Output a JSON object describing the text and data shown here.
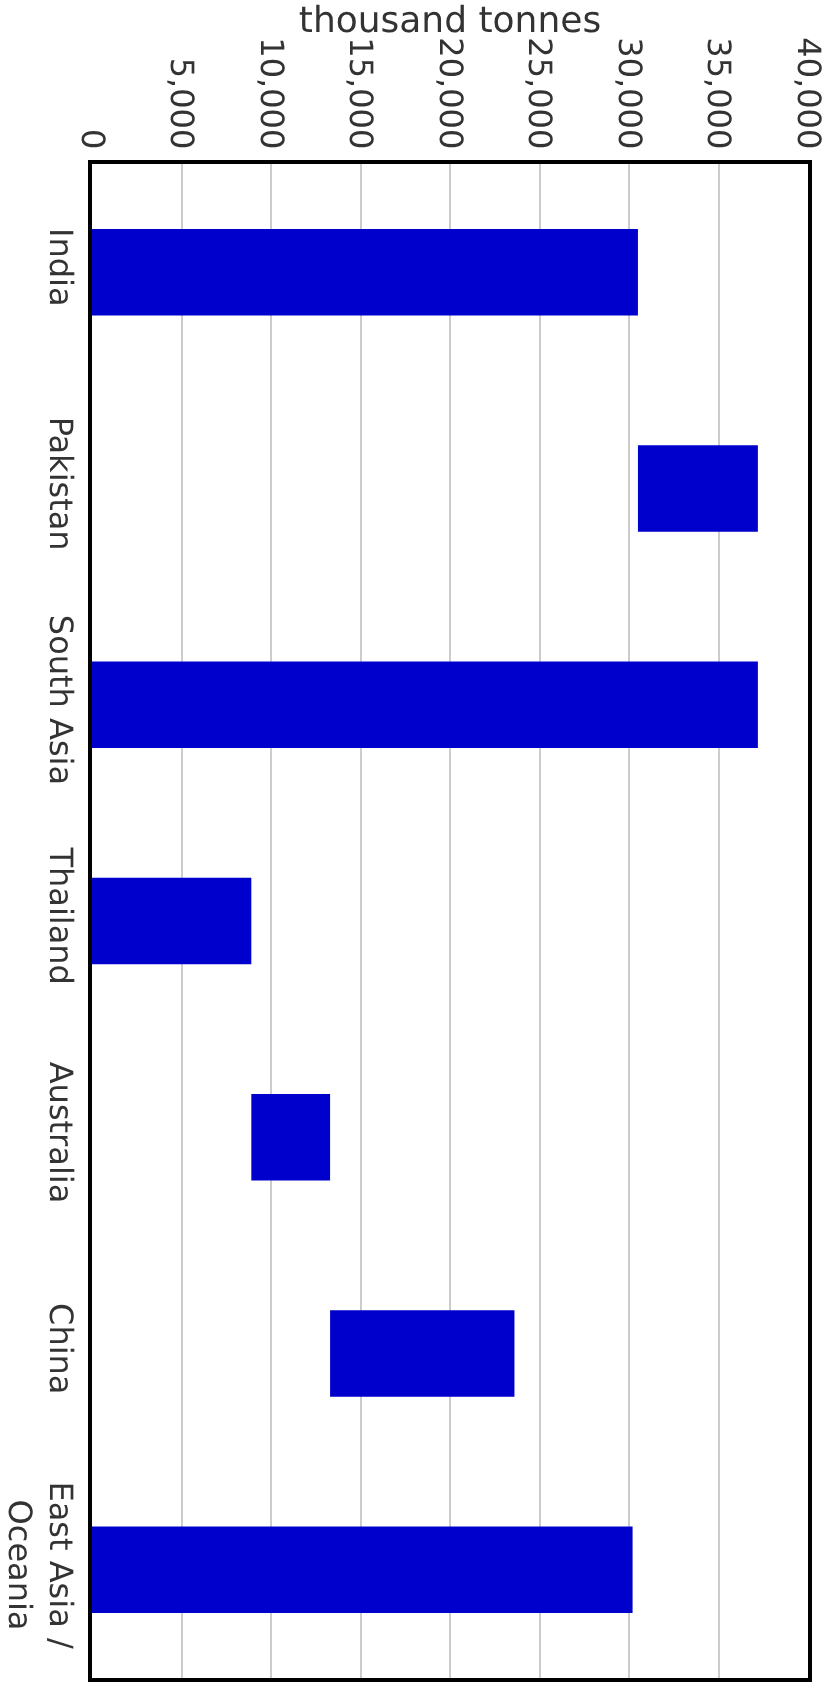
{
  "chart_data": {
    "type": "bar",
    "orientation": "horizontal",
    "xlabel": "thousand tonnes",
    "categories": [
      "India",
      "Pakistan",
      "South Asia",
      "Thailand",
      "Australia",
      "China",
      "East Asia / Oceania"
    ],
    "values": [
      30500,
      6700,
      37200,
      8900,
      4400,
      10300,
      30200
    ],
    "base": [
      0,
      30500,
      0,
      0,
      8900,
      13300,
      0
    ],
    "color": "#0000cc",
    "xlim": [
      0,
      40000
    ],
    "xticks": [
      {
        "value": 0,
        "label": "0"
      },
      {
        "value": 5000,
        "label": "5,000"
      },
      {
        "value": 10000,
        "label": "10,000"
      },
      {
        "value": 15000,
        "label": "15,000"
      },
      {
        "value": 20000,
        "label": "20,000"
      },
      {
        "value": 25000,
        "label": "25,000"
      },
      {
        "value": 30000,
        "label": "30,000"
      },
      {
        "value": 35000,
        "label": "35,000"
      },
      {
        "value": 40000,
        "label": "40,000"
      }
    ],
    "grid": "x"
  }
}
